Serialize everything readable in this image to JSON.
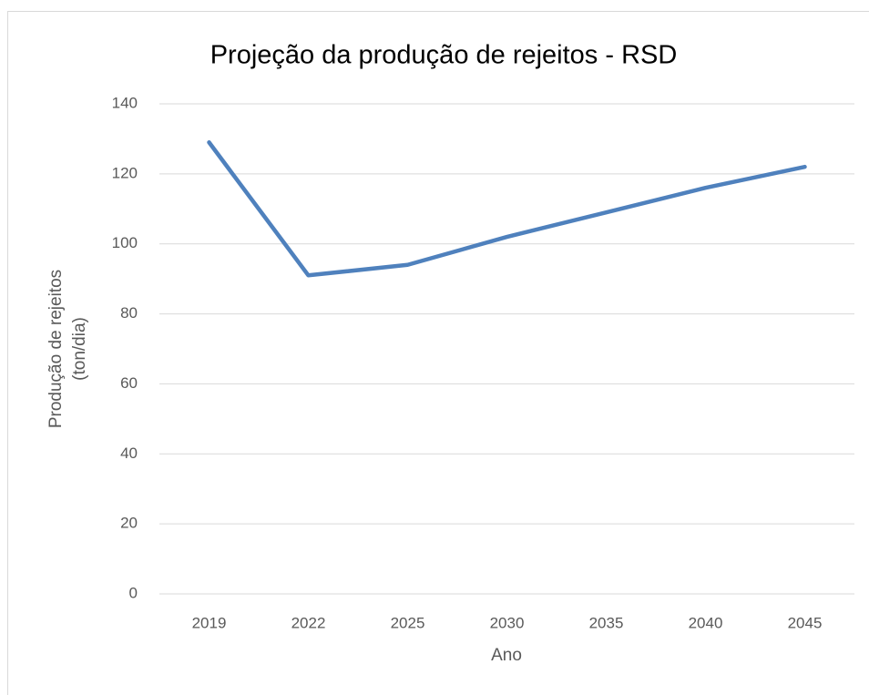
{
  "chart_data": {
    "type": "line",
    "title": "Projeção da produção de rejeitos - RSD",
    "x_label": "Ano",
    "y_label": [
      "Produção de rejeitos",
      "(ton/dia)"
    ],
    "categories": [
      "2019",
      "2022",
      "2025",
      "2030",
      "2035",
      "2040",
      "2045"
    ],
    "series": [
      {
        "name": "RSD",
        "color": "#4f81bd",
        "values": [
          129,
          91,
          94,
          102,
          109,
          116,
          122
        ]
      }
    ],
    "ylim": [
      0,
      140
    ],
    "yticks": [
      0,
      20,
      40,
      60,
      80,
      100,
      120,
      140
    ],
    "grid": true
  }
}
